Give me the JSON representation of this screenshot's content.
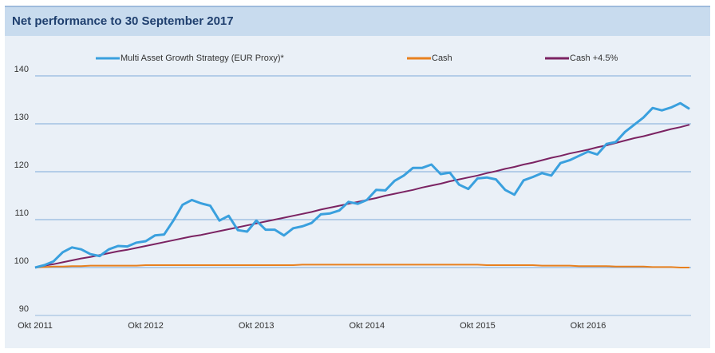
{
  "chart_data": {
    "type": "line",
    "title": "Net performance to 30 September 2017",
    "categories": [
      "Okt 2011",
      null,
      null,
      null,
      null,
      null,
      null,
      null,
      null,
      null,
      null,
      null,
      "Okt 2012",
      null,
      null,
      null,
      null,
      null,
      null,
      null,
      null,
      null,
      null,
      null,
      "Okt 2013",
      null,
      null,
      null,
      null,
      null,
      null,
      null,
      null,
      null,
      null,
      null,
      "Okt 2014",
      null,
      null,
      null,
      null,
      null,
      null,
      null,
      null,
      null,
      null,
      null,
      "Okt 2015",
      null,
      null,
      null,
      null,
      null,
      null,
      null,
      null,
      null,
      null,
      null,
      "Okt 2016",
      null,
      null,
      null,
      null,
      null,
      null,
      null,
      null,
      null,
      null,
      null
    ],
    "series": [
      {
        "name": "Multi Asset Growth Strategy (EUR Proxy)*",
        "color": "#3aa0de",
        "values": [
          100,
          100.5,
          101.3,
          103.2,
          104.2,
          103.8,
          102.8,
          102.4,
          103.8,
          104.5,
          104.4,
          105.2,
          105.5,
          106.7,
          106.9,
          109.8,
          113.1,
          114.1,
          113.4,
          112.9,
          109.8,
          110.8,
          107.8,
          107.5,
          109.8,
          107.9,
          107.9,
          106.7,
          108.2,
          108.6,
          109.3,
          111.1,
          111.3,
          111.9,
          113.7,
          113.3,
          114.1,
          116.2,
          116.1,
          118.1,
          119.2,
          120.8,
          120.8,
          121.5,
          119.5,
          119.8,
          117.3,
          116.4,
          118.6,
          118.8,
          118.4,
          116.2,
          115.2,
          118.2,
          118.9,
          119.7,
          119.2,
          121.8,
          122.4,
          123.3,
          124.2,
          123.6,
          125.8,
          126.2,
          128.3,
          129.8,
          131.3,
          133.3,
          132.8,
          133.4,
          134.3,
          133.1
        ]
      },
      {
        "name": "Cash",
        "color": "#e8801e",
        "values": [
          100,
          100.1,
          100.2,
          100.2,
          100.3,
          100.3,
          100.4,
          100.4,
          100.4,
          100.4,
          100.4,
          100.4,
          100.5,
          100.5,
          100.5,
          100.5,
          100.5,
          100.5,
          100.5,
          100.5,
          100.5,
          100.5,
          100.5,
          100.5,
          100.5,
          100.5,
          100.5,
          100.5,
          100.5,
          100.6,
          100.6,
          100.6,
          100.6,
          100.6,
          100.6,
          100.6,
          100.6,
          100.6,
          100.6,
          100.6,
          100.6,
          100.6,
          100.6,
          100.6,
          100.6,
          100.6,
          100.6,
          100.6,
          100.6,
          100.5,
          100.5,
          100.5,
          100.5,
          100.5,
          100.5,
          100.4,
          100.4,
          100.4,
          100.4,
          100.3,
          100.3,
          100.3,
          100.3,
          100.2,
          100.2,
          100.2,
          100.2,
          100.1,
          100.1,
          100.1,
          100.0,
          100.0
        ]
      },
      {
        "name": "Cash +4.5%",
        "color": "#7b2362",
        "values": [
          100,
          100.4,
          100.7,
          101.1,
          101.5,
          101.9,
          102.2,
          102.6,
          103.0,
          103.4,
          103.7,
          104.1,
          104.5,
          104.9,
          105.3,
          105.7,
          106.1,
          106.5,
          106.8,
          107.2,
          107.6,
          108.0,
          108.4,
          108.8,
          109.2,
          109.6,
          110.0,
          110.4,
          110.8,
          111.2,
          111.6,
          112.1,
          112.5,
          112.9,
          113.3,
          113.7,
          114.1,
          114.5,
          115.0,
          115.4,
          115.8,
          116.2,
          116.7,
          117.1,
          117.5,
          118.0,
          118.4,
          118.8,
          119.2,
          119.7,
          120.1,
          120.6,
          121.0,
          121.5,
          121.9,
          122.4,
          122.9,
          123.3,
          123.8,
          124.2,
          124.6,
          125.1,
          125.5,
          126.0,
          126.5,
          127.0,
          127.4,
          127.9,
          128.4,
          128.9,
          129.3,
          129.8
        ]
      }
    ],
    "ylim": [
      90,
      140
    ],
    "yticks": [
      90,
      100,
      110,
      120,
      130,
      140
    ],
    "grid": true,
    "legend": "top"
  }
}
